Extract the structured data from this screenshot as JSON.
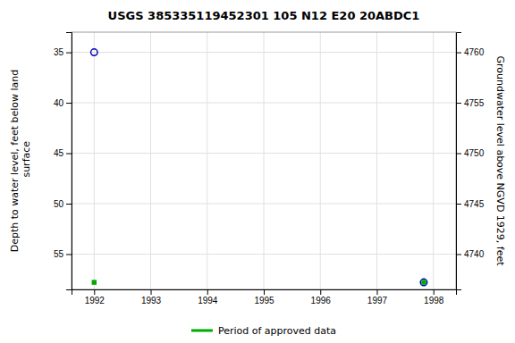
{
  "chart_data": {
    "type": "scatter",
    "title": "USGS 385335119452301 105  N12 E20 20ABDC1",
    "ylabel": "Depth to water level, feet below land\n surface",
    "y2label": "Groundwater level above NGVD 1929, feet",
    "xlim": [
      1991.6,
      1998.4
    ],
    "xticks": [
      1992,
      1993,
      1994,
      1995,
      1996,
      1997,
      1998
    ],
    "ylim": [
      58.5,
      33.0
    ],
    "yticks": [
      35,
      40,
      45,
      50,
      55
    ],
    "y2lim": [
      4736.5,
      4762.0
    ],
    "y2ticks": [
      4760,
      4755,
      4750,
      4745,
      4740
    ],
    "grid": true,
    "legend": "bottom",
    "series": [
      {
        "color": "#0000bb",
        "marker": "open-circle",
        "x": [
          1992.0,
          1997.83
        ],
        "values": [
          35.0,
          57.8
        ]
      },
      {
        "name": "Period of approved data",
        "color": "#00aa00",
        "marker": "square",
        "x": [
          1992.0,
          1997.83
        ],
        "values": [
          57.8,
          57.8
        ]
      }
    ]
  }
}
